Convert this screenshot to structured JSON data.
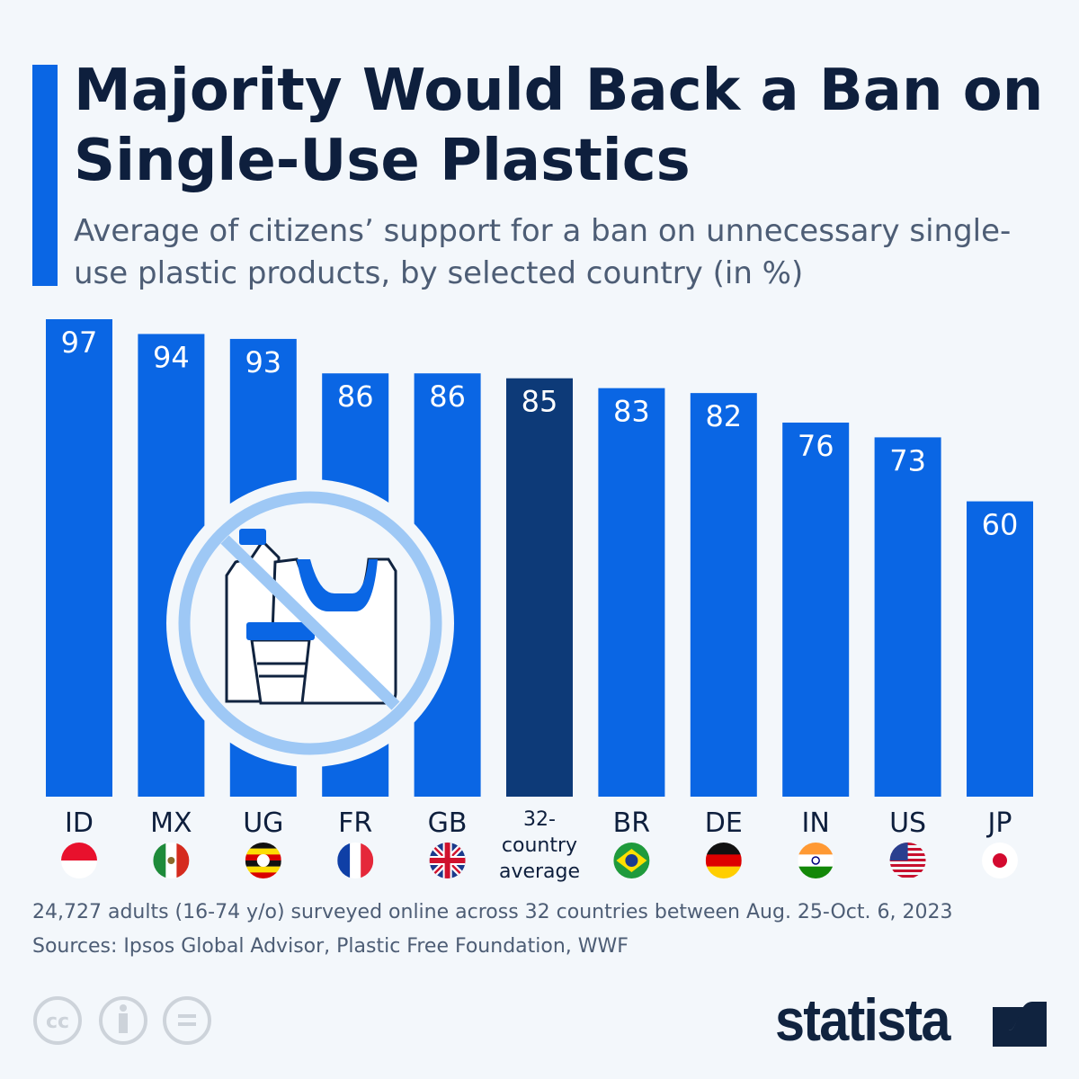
{
  "title": "Majority Would Back a Ban on Single-Use Plastics",
  "subtitle": "Average of citizens’ support for a ban on unnecessary single-use plastic products, by selected country (in %)",
  "colors": {
    "bar": "#0a66e4",
    "highlight": "#0d3a78",
    "title": "#0e1f3d",
    "background": "#f3f7fb"
  },
  "chart_data": {
    "type": "bar",
    "title": "Majority Would Back a Ban on Single-Use Plastics",
    "categories": [
      "ID",
      "MX",
      "UG",
      "FR",
      "GB",
      "32-country average",
      "BR",
      "DE",
      "IN",
      "US",
      "JP"
    ],
    "values": [
      97,
      94,
      93,
      86,
      86,
      85,
      83,
      82,
      76,
      73,
      60
    ],
    "highlighted": "32-country average",
    "ylim": [
      0,
      100
    ],
    "grid": false,
    "data_labels": true,
    "category_icons": [
      "flag-indonesia",
      "flag-mexico",
      "flag-uganda",
      "flag-france",
      "flag-uk",
      "none",
      "flag-brazil",
      "flag-germany",
      "flag-india",
      "flag-usa",
      "flag-japan"
    ],
    "illustration": "no-single-use-plastics-icon"
  },
  "footer": {
    "note": "24,727 adults (16-74 y/o) surveyed online across 32 countries between Aug. 25-Oct. 6, 2023",
    "sources": "Sources: Ipsos Global Advisor, Plastic Free Foundation, WWF",
    "license_icons": [
      "cc-icon",
      "attribution-icon",
      "no-derivatives-icon"
    ],
    "brand": "statista"
  }
}
